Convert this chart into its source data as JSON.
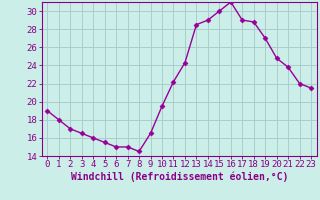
{
  "x": [
    0,
    1,
    2,
    3,
    4,
    5,
    6,
    7,
    8,
    9,
    10,
    11,
    12,
    13,
    14,
    15,
    16,
    17,
    18,
    19,
    20,
    21,
    22,
    23
  ],
  "y": [
    19.0,
    18.0,
    17.0,
    16.5,
    16.0,
    15.5,
    15.0,
    15.0,
    14.5,
    16.5,
    19.5,
    22.2,
    24.3,
    28.5,
    29.0,
    30.0,
    31.0,
    29.0,
    28.8,
    27.0,
    24.8,
    23.8,
    22.0,
    21.5
  ],
  "line_color": "#990099",
  "marker": "D",
  "marker_size": 2.5,
  "bg_color": "#cceee8",
  "grid_color": "#aacccc",
  "axis_color": "#880088",
  "xlabel": "Windchill (Refroidissement éolien,°C)",
  "xlabel_fontsize": 7,
  "tick_fontsize": 6.5,
  "ylim": [
    14,
    31
  ],
  "xlim": [
    -0.5,
    23.5
  ],
  "yticks": [
    14,
    16,
    18,
    20,
    22,
    24,
    26,
    28,
    30
  ],
  "xticks": [
    0,
    1,
    2,
    3,
    4,
    5,
    6,
    7,
    8,
    9,
    10,
    11,
    12,
    13,
    14,
    15,
    16,
    17,
    18,
    19,
    20,
    21,
    22,
    23
  ],
  "spine_color": "#880088"
}
